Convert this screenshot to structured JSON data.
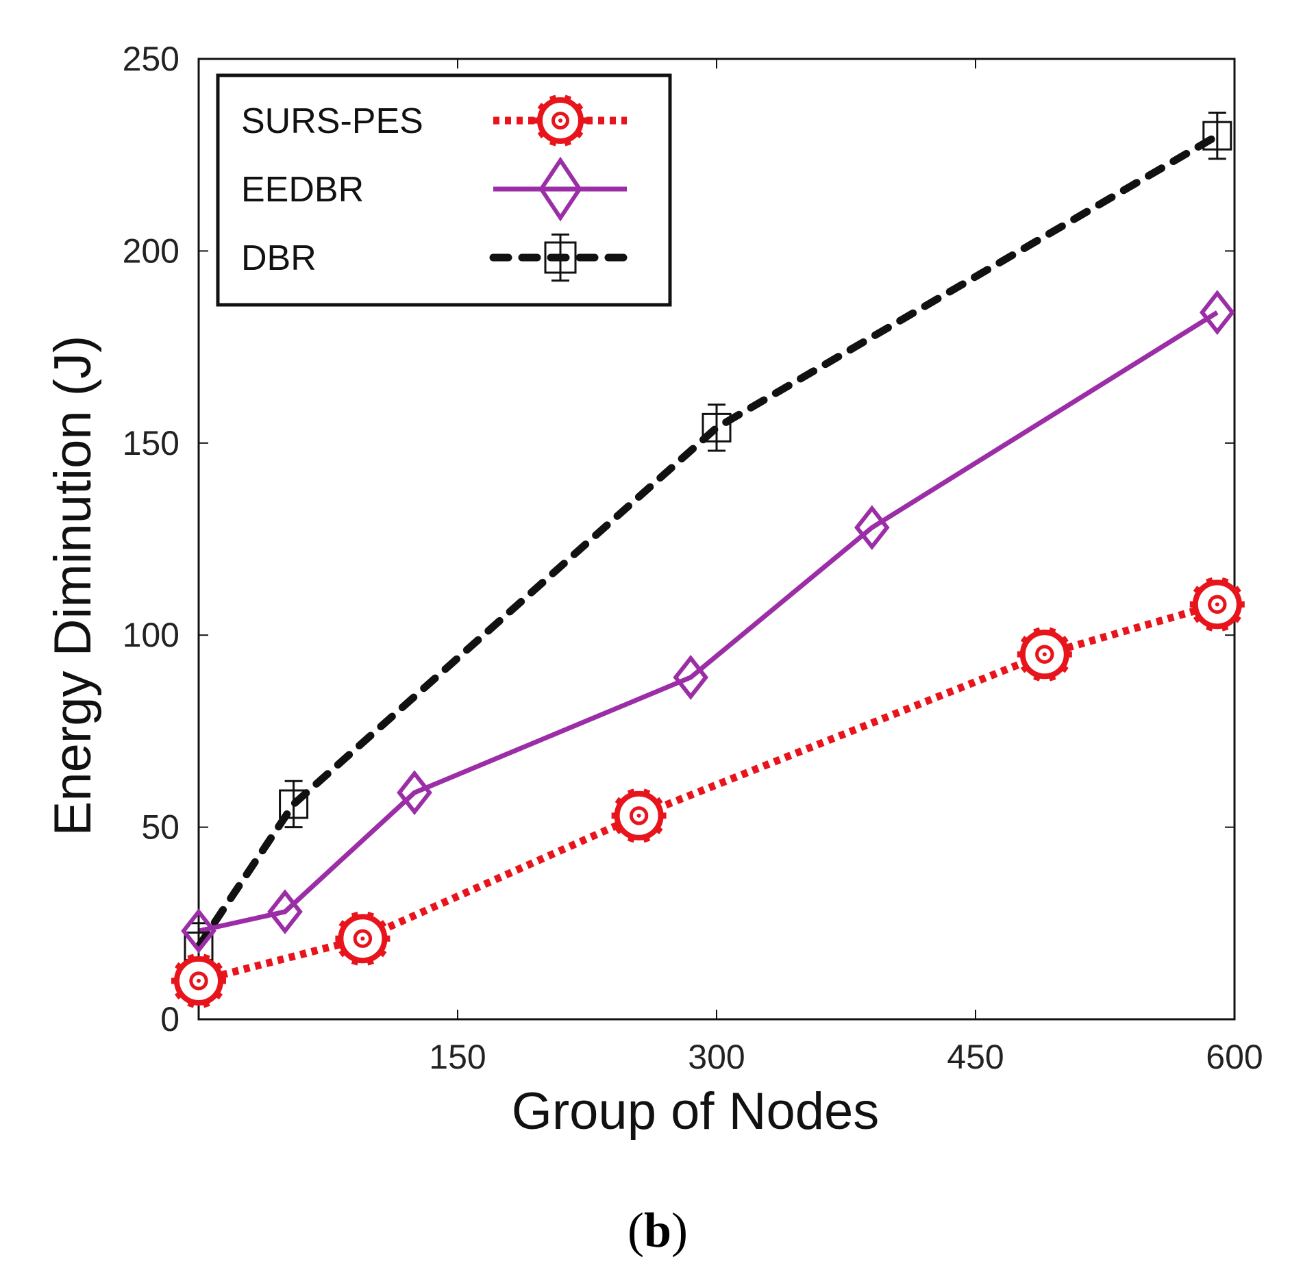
{
  "chart_data": {
    "type": "line",
    "xlabel": "Group of Nodes",
    "ylabel": "Energy Diminution (J)",
    "caption": {
      "open": "(",
      "letter": "b",
      "close": ")"
    },
    "xlim": [
      0,
      600
    ],
    "ylim": [
      0,
      250
    ],
    "xticks": [
      150,
      300,
      450,
      600
    ],
    "yticks": [
      0,
      50,
      100,
      150,
      200,
      250
    ],
    "legend_position": "top-left",
    "grid": false,
    "series": [
      {
        "name": "SURS-PES",
        "color": "#e8141c",
        "line": "dotted",
        "marker": "gear",
        "x": [
          0,
          95,
          255,
          490,
          590
        ],
        "y": [
          10,
          21,
          53,
          95,
          108
        ]
      },
      {
        "name": "EEDBR",
        "color": "#9b2ea6",
        "line": "solid",
        "marker": "diamond",
        "x": [
          0,
          50,
          125,
          285,
          390,
          590
        ],
        "y": [
          23,
          28,
          59,
          89,
          128,
          184
        ]
      },
      {
        "name": "DBR",
        "color": "#111111",
        "line": "dashed",
        "marker": "square-errorbar",
        "x": [
          0,
          55,
          300,
          590
        ],
        "y": [
          19,
          56,
          154,
          230
        ],
        "err": [
          6,
          6,
          6,
          6
        ]
      }
    ]
  }
}
